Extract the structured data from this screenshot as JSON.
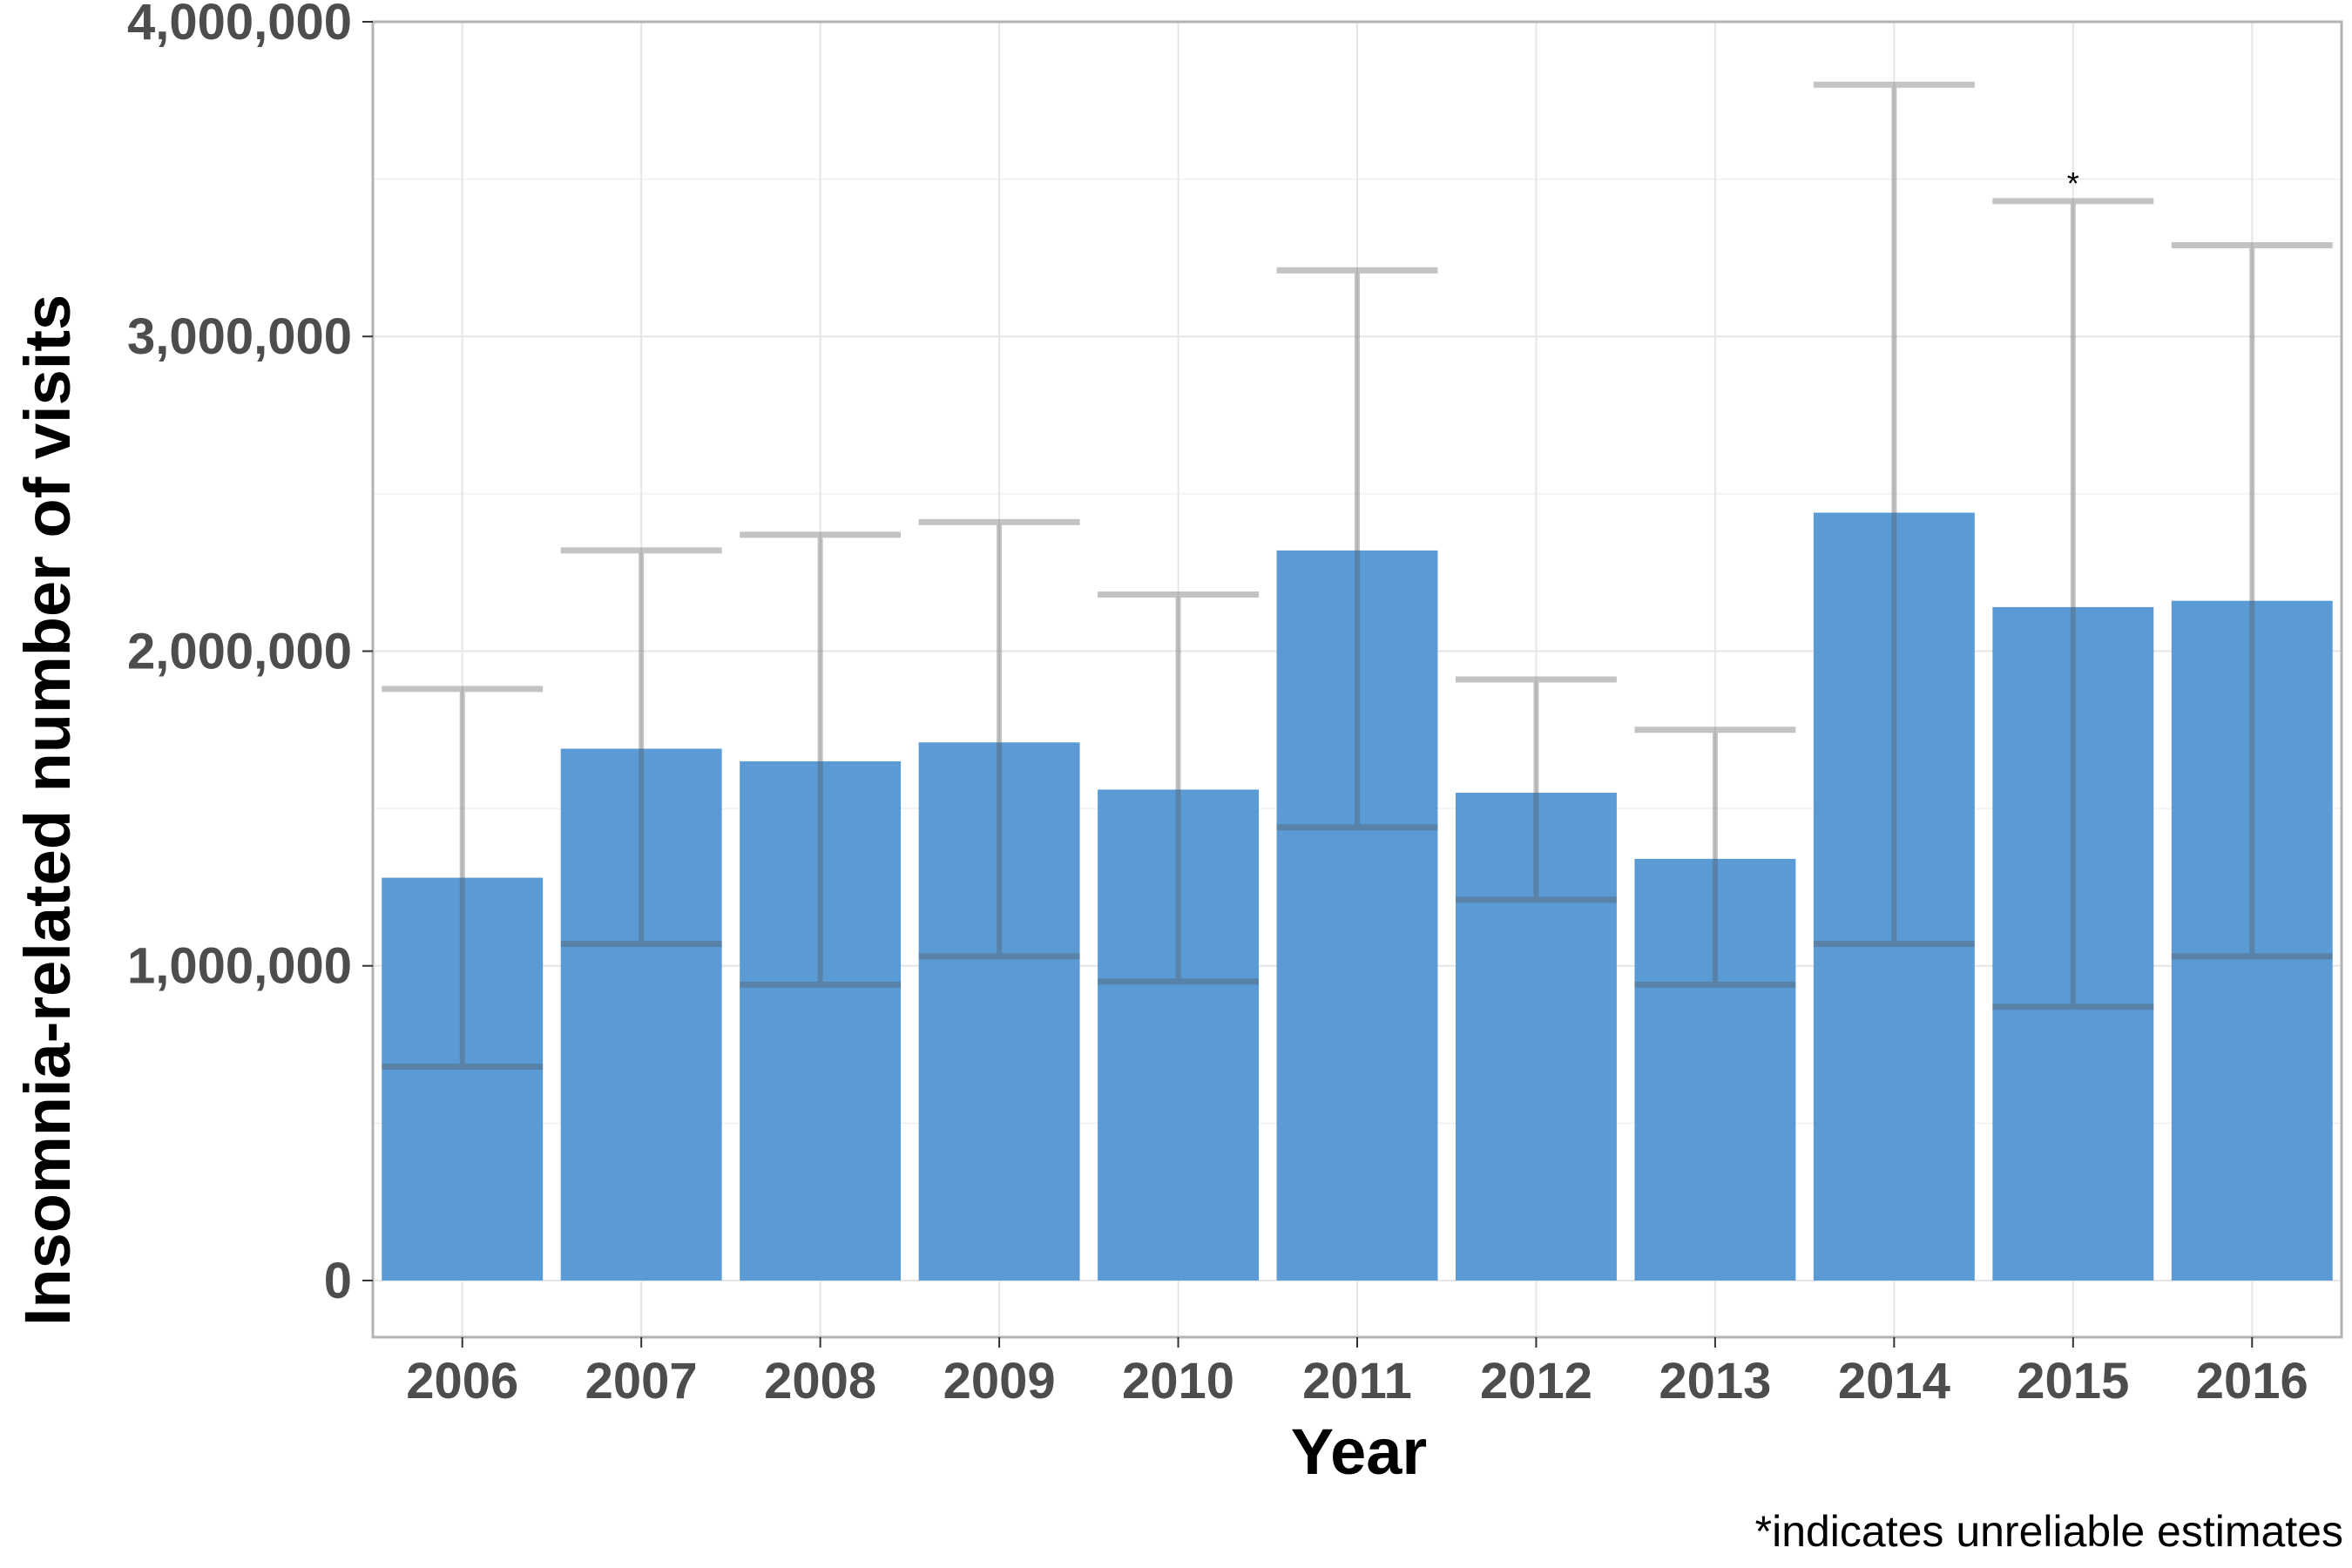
{
  "chart_data": {
    "type": "bar",
    "xlabel": "Year",
    "ylabel": "Insomnia-related number of visits",
    "caption": "*indicates unreliable estimates",
    "categories": [
      "2006",
      "2007",
      "2008",
      "2009",
      "2010",
      "2011",
      "2012",
      "2013",
      "2014",
      "2015",
      "2016"
    ],
    "values": [
      1280000,
      1690000,
      1650000,
      1710000,
      1560000,
      2320000,
      1550000,
      1340000,
      2440000,
      2140000,
      2160000
    ],
    "ci_lower": [
      680000,
      1070000,
      940000,
      1030000,
      950000,
      1440000,
      1210000,
      940000,
      1070000,
      870000,
      1030000
    ],
    "ci_upper": [
      1880000,
      2320000,
      2370000,
      2410000,
      2180000,
      3210000,
      1910000,
      1750000,
      3800000,
      3430000,
      3290000
    ],
    "unreliable_marker": "*",
    "unreliable_flags": [
      false,
      false,
      false,
      false,
      false,
      false,
      false,
      false,
      false,
      true,
      false
    ],
    "ylim": [
      -180000,
      4000000
    ],
    "yticks": [
      0,
      1000000,
      2000000,
      3000000,
      4000000
    ],
    "ytick_labels": [
      "0",
      "1,000,000",
      "2,000,000",
      "3,000,000",
      "4,000,000"
    ],
    "grid": true,
    "bar_color": "#5b9bd5",
    "errorbar_color": "#555555",
    "panel_border_color": "#b3b3b3",
    "grid_color": "#e6e6e6"
  }
}
